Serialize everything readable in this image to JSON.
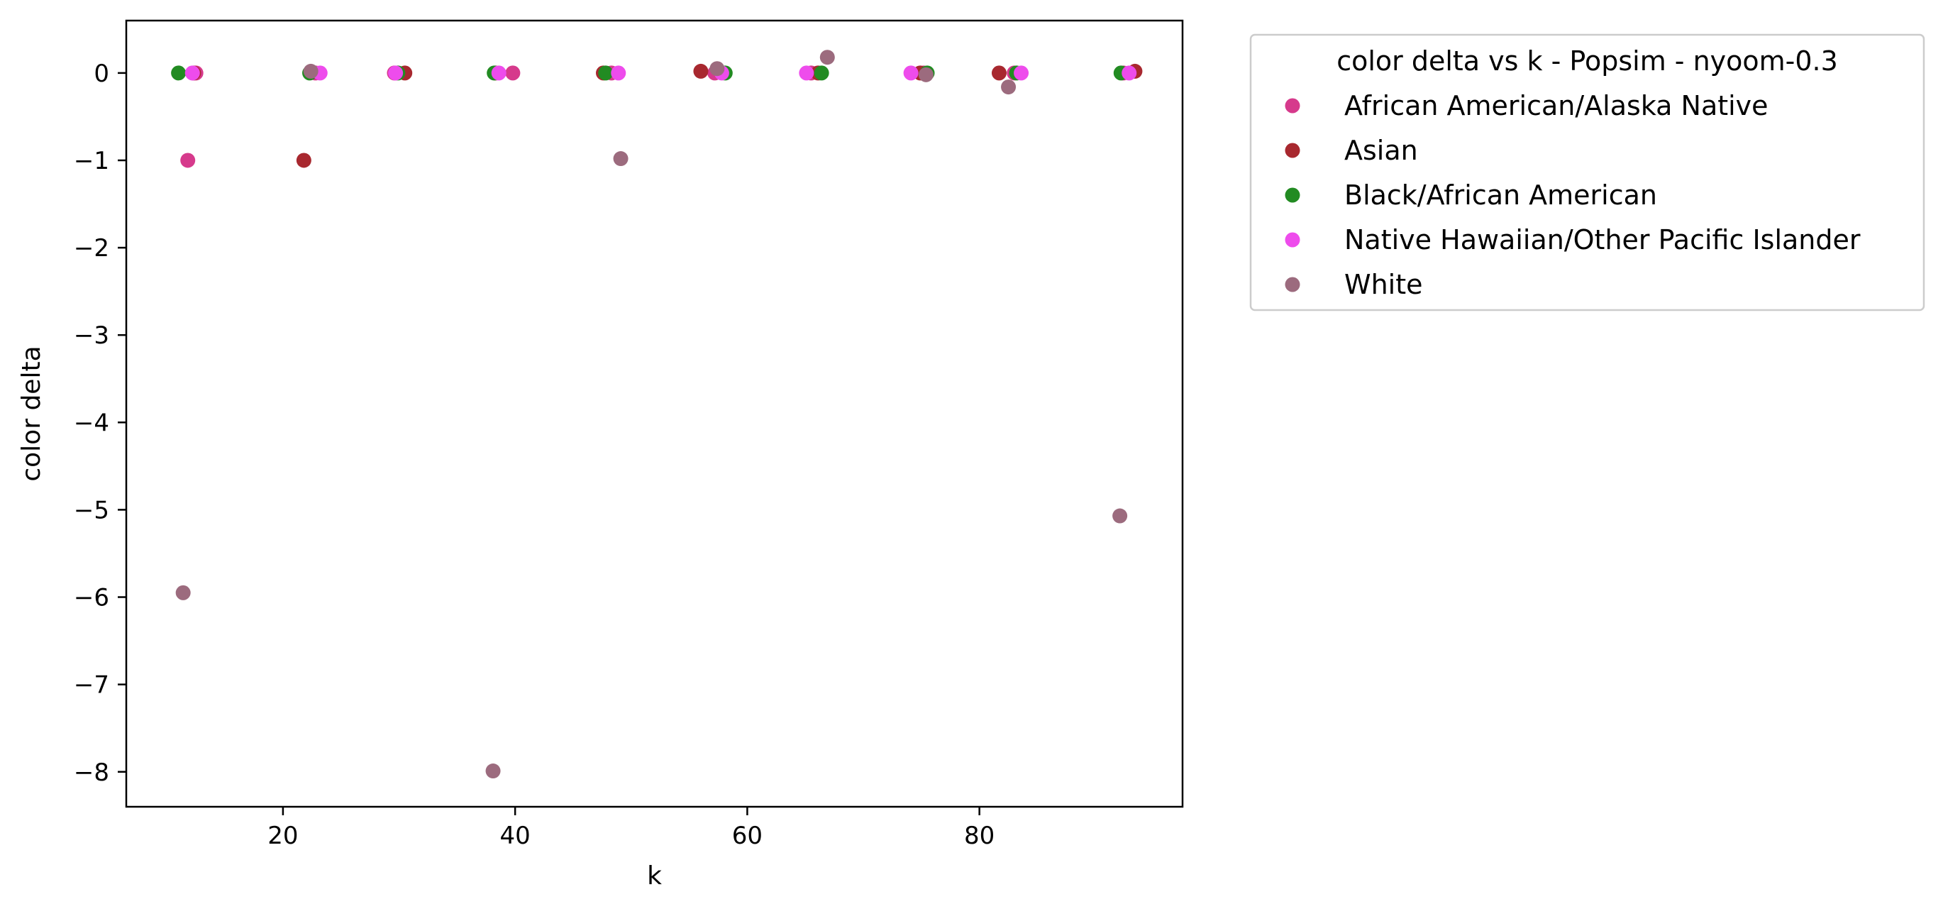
{
  "chart_data": {
    "type": "scatter",
    "title": "",
    "xlabel": "k",
    "ylabel": "color delta",
    "xlim": [
      6.5,
      97.5
    ],
    "ylim": [
      -8.4,
      0.6
    ],
    "xticks": [
      20,
      40,
      60,
      80
    ],
    "yticks": [
      0,
      -1,
      -2,
      -3,
      -4,
      -5,
      -6,
      -7,
      -8
    ],
    "ytick_labels": [
      "0",
      "−1",
      "−2",
      "−3",
      "−4",
      "−5",
      "−6",
      "−7",
      "−8"
    ],
    "grid": false,
    "legend": {
      "title": "color delta vs k - Popsim - nyoom-0.3",
      "placement": "outside-upper-right"
    },
    "series": [
      {
        "name": "African American/Alaska Native",
        "color": "#d63a8c",
        "points": [
          {
            "x": 11.8,
            "y": -1.0
          },
          {
            "x": 12.5,
            "y": 0.0
          },
          {
            "x": 22.8,
            "y": 0.0
          },
          {
            "x": 29.6,
            "y": 0.0
          },
          {
            "x": 39.8,
            "y": 0.0
          },
          {
            "x": 48.3,
            "y": 0.0
          },
          {
            "x": 57.2,
            "y": 0.0
          },
          {
            "x": 65.5,
            "y": 0.0
          },
          {
            "x": 75.2,
            "y": 0.0
          },
          {
            "x": 83.0,
            "y": 0.0
          },
          {
            "x": 92.4,
            "y": 0.0
          }
        ]
      },
      {
        "name": "Asian",
        "color": "#a8282f",
        "points": [
          {
            "x": 12.3,
            "y": 0.0
          },
          {
            "x": 21.8,
            "y": -1.0
          },
          {
            "x": 30.5,
            "y": 0.0
          },
          {
            "x": 38.3,
            "y": 0.0
          },
          {
            "x": 47.6,
            "y": 0.0
          },
          {
            "x": 56.0,
            "y": 0.02
          },
          {
            "x": 66.1,
            "y": 0.0
          },
          {
            "x": 74.9,
            "y": 0.0
          },
          {
            "x": 81.7,
            "y": 0.0
          },
          {
            "x": 93.4,
            "y": 0.02
          }
        ]
      },
      {
        "name": "Black/African American",
        "color": "#228b22",
        "points": [
          {
            "x": 11.0,
            "y": 0.0
          },
          {
            "x": 22.3,
            "y": 0.0
          },
          {
            "x": 29.9,
            "y": 0.0
          },
          {
            "x": 38.2,
            "y": 0.0
          },
          {
            "x": 47.8,
            "y": 0.0
          },
          {
            "x": 58.1,
            "y": 0.0
          },
          {
            "x": 66.4,
            "y": 0.0
          },
          {
            "x": 75.5,
            "y": 0.0
          },
          {
            "x": 83.2,
            "y": 0.0
          },
          {
            "x": 92.2,
            "y": 0.0
          }
        ]
      },
      {
        "name": "Native Hawaiian/Other Pacific Islander",
        "color": "#ee4cec",
        "points": [
          {
            "x": 12.2,
            "y": 0.0
          },
          {
            "x": 23.2,
            "y": 0.0
          },
          {
            "x": 29.7,
            "y": 0.0
          },
          {
            "x": 38.6,
            "y": 0.0
          },
          {
            "x": 48.9,
            "y": 0.0
          },
          {
            "x": 57.8,
            "y": 0.0
          },
          {
            "x": 65.1,
            "y": 0.0
          },
          {
            "x": 74.1,
            "y": 0.0
          },
          {
            "x": 83.6,
            "y": 0.0
          },
          {
            "x": 92.9,
            "y": 0.0
          }
        ]
      },
      {
        "name": "White",
        "color": "#9c6b7e",
        "points": [
          {
            "x": 11.4,
            "y": -5.95
          },
          {
            "x": 22.4,
            "y": 0.02
          },
          {
            "x": 38.1,
            "y": -7.99
          },
          {
            "x": 49.1,
            "y": -0.98
          },
          {
            "x": 57.4,
            "y": 0.05
          },
          {
            "x": 66.9,
            "y": 0.18
          },
          {
            "x": 75.4,
            "y": -0.02
          },
          {
            "x": 82.5,
            "y": -0.16
          },
          {
            "x": 92.1,
            "y": -5.07
          }
        ]
      }
    ]
  }
}
